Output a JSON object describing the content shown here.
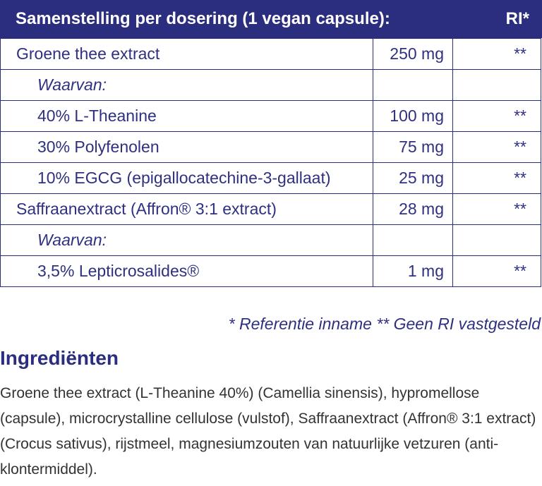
{
  "header": {
    "title": "Samenstelling per dosering (1 vegan capsule):",
    "ri": "RI*"
  },
  "table": {
    "rows": [
      [
        "Groene thee extract",
        "250 mg",
        "**"
      ],
      [
        "Waarvan:"
      ],
      [
        "40% L-Theanine",
        "100 mg",
        "**"
      ],
      [
        "30% Polyfenolen",
        "75 mg",
        "**"
      ],
      [
        "10%  EGCG (epigallocatechine-3-gallaat)",
        "25 mg",
        "**"
      ],
      [
        "Saffraanextract (Affron® 3:1 extract)",
        "28 mg",
        "**"
      ],
      [
        "Waarvan:"
      ],
      [
        "3,5% Lepticrosalides®",
        "1 mg",
        "**"
      ]
    ]
  },
  "footnote": "* Referentie inname  ** Geen RI vastgesteld",
  "ingredients": {
    "title": "Ingrediënten",
    "text": "Groene thee extract (L-Theanine 40%) (Camellia sinensis), hypromellose (capsule), microcrystalline cellulose (vulstof), Saffraanextract (Affron® 3:1 extract) (Crocus sativus), rijstmeel, magnesiumzouten van natuurlijke vetzuren (anti-klontermiddel)."
  }
}
